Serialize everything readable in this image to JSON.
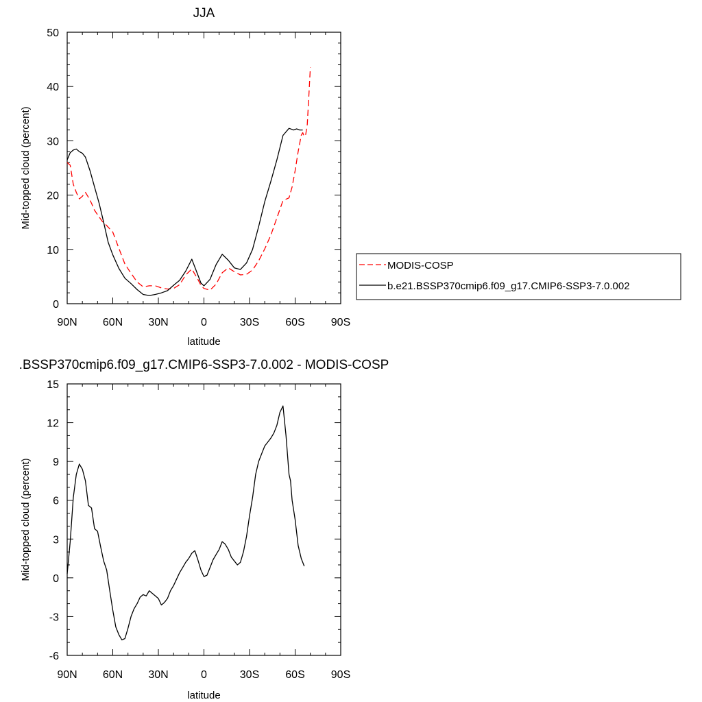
{
  "chart_data": [
    {
      "type": "line",
      "title": "JJA",
      "xlabel": "latitude",
      "ylabel": "Mid-topped cloud (percent)",
      "xlim": [
        90,
        -90
      ],
      "ylim": [
        0,
        50
      ],
      "x_ticks": [
        90,
        60,
        30,
        0,
        -30,
        -60,
        -90
      ],
      "x_tick_labels": [
        "90N",
        "60N",
        "30N",
        "0",
        "30S",
        "60S",
        "90S"
      ],
      "y_ticks": [
        0,
        10,
        20,
        30,
        40,
        50
      ],
      "y_tick_labels": [
        "0",
        "10",
        "20",
        "30",
        "40",
        "50"
      ],
      "legend_position": "right",
      "series": [
        {
          "name": "MODIS-COSP",
          "color": "#ff0000",
          "style": "dashed",
          "x": [
            90,
            88,
            86,
            84,
            82,
            80,
            78,
            76,
            74,
            72,
            70,
            67,
            64,
            60,
            56,
            52,
            48,
            44,
            40,
            36,
            32,
            28,
            24,
            20,
            16,
            12,
            8,
            4,
            2,
            0,
            -4,
            -8,
            -12,
            -16,
            -20,
            -24,
            -28,
            -32,
            -36,
            -40,
            -44,
            -48,
            -52,
            -56,
            -58,
            -60,
            -62,
            -64,
            -65,
            -66,
            -67,
            -68,
            -69,
            -70
          ],
          "y": [
            26,
            25.5,
            22,
            20.5,
            19.3,
            19.8,
            20.5,
            19.6,
            18.5,
            17.2,
            16.4,
            15.2,
            14.4,
            13.2,
            10.2,
            7.3,
            5.6,
            4.0,
            3.1,
            3.3,
            3.3,
            2.9,
            2.7,
            2.8,
            3.5,
            5.3,
            6.4,
            4.5,
            3.4,
            2.8,
            2.5,
            3.6,
            5.7,
            6.6,
            5.9,
            5.3,
            5.4,
            6.2,
            7.9,
            10.1,
            12.6,
            15.8,
            19.0,
            19.5,
            21.5,
            24.5,
            28.0,
            31.0,
            31.5,
            30.8,
            31.2,
            33.0,
            38.0,
            43.5
          ]
        },
        {
          "name": "b.e21.BSSP370cmip6.f09_g17.CMIP6-SSP3-7.0.002",
          "color": "#000000",
          "style": "solid",
          "x": [
            90,
            88,
            86,
            84,
            82,
            80,
            78,
            75,
            72,
            69,
            66,
            63,
            60,
            56,
            52,
            48,
            44,
            40,
            36,
            32,
            28,
            24,
            20,
            16,
            12,
            8,
            4,
            2,
            0,
            -4,
            -8,
            -12,
            -16,
            -20,
            -24,
            -28,
            -32,
            -36,
            -40,
            -44,
            -48,
            -52,
            -56,
            -59,
            -61,
            -63,
            -65
          ],
          "y": [
            26.5,
            27.8,
            28.3,
            28.5,
            28.0,
            27.7,
            27.0,
            24.5,
            21.5,
            18.5,
            15.0,
            11.3,
            9.0,
            6.5,
            4.7,
            3.7,
            2.6,
            1.7,
            1.5,
            1.7,
            2.0,
            2.4,
            3.4,
            4.3,
            6.0,
            8.2,
            5.3,
            3.8,
            3.3,
            4.5,
            7.2,
            9.1,
            8.0,
            6.6,
            6.3,
            7.5,
            10.0,
            14.2,
            18.8,
            22.5,
            26.5,
            31.0,
            32.3,
            32.0,
            32.2,
            32.0,
            32.0
          ]
        }
      ]
    },
    {
      "type": "line",
      "title": ".BSSP370cmip6.f09_g17.CMIP6-SSP3-7.0.002 - MODIS-COSP",
      "xlabel": "latitude",
      "ylabel": "Mid-topped cloud (percent)",
      "xlim": [
        90,
        -90
      ],
      "ylim": [
        -6,
        15
      ],
      "x_ticks": [
        90,
        60,
        30,
        0,
        -30,
        -60,
        -90
      ],
      "x_tick_labels": [
        "90N",
        "60N",
        "30N",
        "0",
        "30S",
        "60S",
        "90S"
      ],
      "y_ticks": [
        -6,
        -3,
        0,
        3,
        6,
        9,
        12,
        15
      ],
      "y_tick_labels": [
        "-6",
        "-3",
        "0",
        "3",
        "6",
        "9",
        "12",
        "15"
      ],
      "series": [
        {
          "color": "#000000",
          "style": "solid",
          "x": [
            90,
            88,
            86,
            84,
            82,
            80,
            78,
            76,
            74,
            72,
            70,
            68,
            66,
            64,
            62,
            60,
            58,
            56,
            54,
            52,
            50,
            48,
            46,
            44,
            42,
            40,
            38,
            36,
            34,
            32,
            30,
            28,
            26,
            24,
            22,
            20,
            18,
            16,
            14,
            12,
            10,
            8,
            6,
            4,
            2,
            0,
            -2,
            -4,
            -6,
            -8,
            -10,
            -12,
            -14,
            -16,
            -18,
            -20,
            -22,
            -24,
            -26,
            -28,
            -30,
            -32,
            -34,
            -36,
            -38,
            -40,
            -42,
            -44,
            -46,
            -48,
            -50,
            -52,
            -54,
            -56,
            -57,
            -58,
            -60,
            -62,
            -64,
            -66
          ],
          "y": [
            0.3,
            2.8,
            6.2,
            8.0,
            8.8,
            8.4,
            7.5,
            5.6,
            5.4,
            3.8,
            3.6,
            2.4,
            1.3,
            0.6,
            -1.0,
            -2.5,
            -3.8,
            -4.4,
            -4.8,
            -4.7,
            -3.9,
            -3.0,
            -2.4,
            -2.0,
            -1.5,
            -1.3,
            -1.4,
            -1.0,
            -1.2,
            -1.4,
            -1.6,
            -2.1,
            -1.9,
            -1.6,
            -1.0,
            -0.6,
            -0.1,
            0.4,
            0.8,
            1.2,
            1.5,
            1.9,
            2.1,
            1.4,
            0.6,
            0.1,
            0.2,
            0.8,
            1.4,
            1.8,
            2.2,
            2.8,
            2.6,
            2.2,
            1.6,
            1.3,
            1.0,
            1.2,
            2.0,
            3.2,
            4.8,
            6.2,
            8.0,
            9.0,
            9.6,
            10.2,
            10.5,
            10.8,
            11.2,
            11.8,
            12.8,
            13.3,
            11.0,
            8.0,
            7.5,
            6.0,
            4.5,
            2.5,
            1.5,
            0.9
          ]
        }
      ]
    }
  ]
}
